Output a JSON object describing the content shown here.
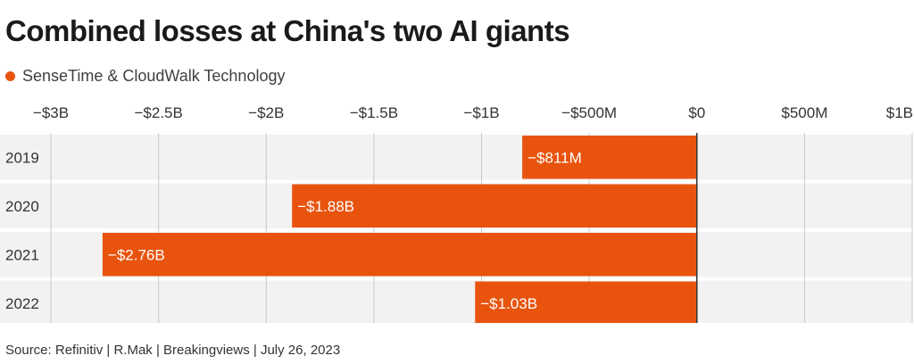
{
  "title": "Combined losses at China's two AI giants",
  "legend": {
    "label": "SenseTime & CloudWalk Technology",
    "color": "#e8540e"
  },
  "source": "Source: Refinitiv | R.Mak | Breakingviews | July 26, 2023",
  "colors": {
    "bar": "#e8540e",
    "band": "#f2f2f2",
    "grid": "#c8c8c8",
    "zero": "#333333"
  },
  "chart_data": {
    "type": "bar",
    "orientation": "horizontal",
    "categories": [
      "2019",
      "2020",
      "2021",
      "2022"
    ],
    "series": [
      {
        "name": "SenseTime & CloudWalk Technology",
        "values": [
          -0.811,
          -1.88,
          -2.76,
          -1.03
        ]
      }
    ],
    "value_labels": [
      "−$811M",
      "−$1.88B",
      "−$2.76B",
      "−$1.03B"
    ],
    "xlim": [
      -3,
      1
    ],
    "xticks": [
      -3,
      -2.5,
      -2,
      -1.5,
      -1,
      -0.5,
      0,
      0.5,
      1
    ],
    "xtick_labels": [
      "−$3B",
      "−$2.5B",
      "−$2B",
      "−$1.5B",
      "−$1B",
      "−$500M",
      "$0",
      "$500M",
      "$1B"
    ],
    "xaxis_position": "top",
    "grid": true
  }
}
